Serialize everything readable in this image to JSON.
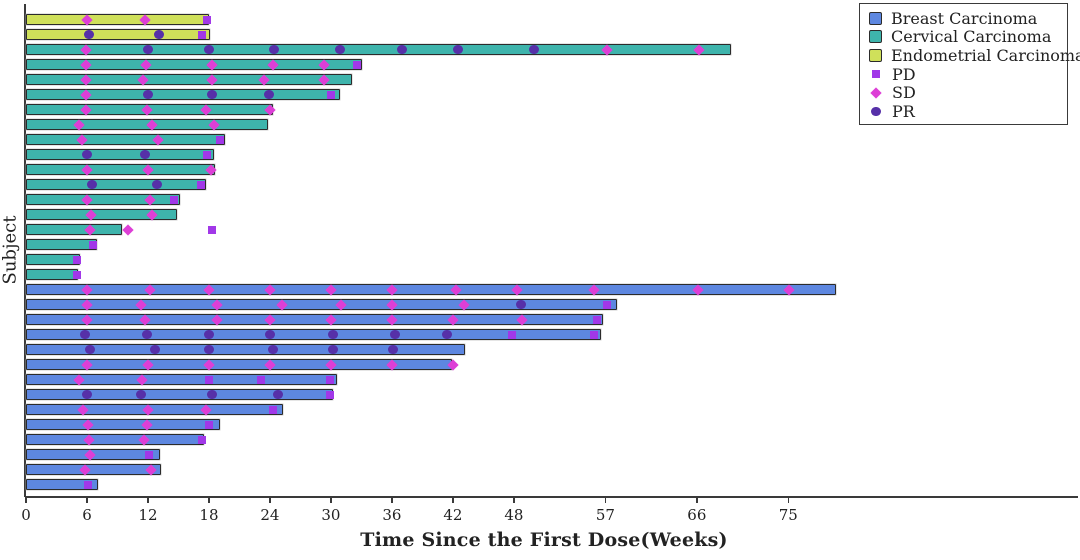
{
  "chart_data": {
    "type": "bar",
    "variant": "swimmer-plot",
    "title": "",
    "xlabel": "Time Since the First Dose(Weeks)",
    "ylabel": "Subject",
    "x_unit": "weeks",
    "xticks": [
      0,
      6,
      12,
      18,
      24,
      30,
      36,
      42,
      48,
      57,
      66,
      75
    ],
    "xlim": [
      0,
      103.5
    ],
    "grid": false,
    "legend_position": "top-right",
    "background": "#ffffff",
    "axis_color": "#3a3a3a",
    "bar_border_color": "#2b2b2b",
    "groups": [
      {
        "label": "Breast Carcinoma",
        "color": "#5d87e0"
      },
      {
        "label": "Cervical Carcinoma",
        "color": "#3eb4ac"
      },
      {
        "label": "Endometrial Carcinoma",
        "color": "#cfe05a"
      }
    ],
    "marker_types": [
      {
        "label": "PD",
        "shape": "square",
        "color": "#a138e8"
      },
      {
        "label": "SD",
        "shape": "diamond",
        "color": "#dd3fd6"
      },
      {
        "label": "PR",
        "shape": "circle",
        "color": "#5630a8"
      }
    ],
    "bars": [
      {
        "group": "Endometrial Carcinoma",
        "length_weeks": 18.0,
        "events": [
          {
            "t": 6.0,
            "m": "SD"
          },
          {
            "t": 11.7,
            "m": "SD"
          },
          {
            "t": 17.8,
            "m": "PD"
          }
        ]
      },
      {
        "group": "Endometrial Carcinoma",
        "length_weeks": 18.1,
        "events": [
          {
            "t": 6.2,
            "m": "PR"
          },
          {
            "t": 13.1,
            "m": "PR"
          },
          {
            "t": 17.3,
            "m": "PD"
          }
        ]
      },
      {
        "group": "Cervical Carcinoma",
        "length_weeks": 69.3,
        "events": [
          {
            "t": 5.9,
            "m": "SD"
          },
          {
            "t": 12.0,
            "m": "PR"
          },
          {
            "t": 18.0,
            "m": "PR"
          },
          {
            "t": 24.4,
            "m": "PR"
          },
          {
            "t": 30.9,
            "m": "PR"
          },
          {
            "t": 37.0,
            "m": "PR"
          },
          {
            "t": 42.5,
            "m": "PR"
          },
          {
            "t": 50.0,
            "m": "PR"
          },
          {
            "t": 57.2,
            "m": "SD"
          },
          {
            "t": 66.2,
            "m": "SD"
          }
        ]
      },
      {
        "group": "Cervical Carcinoma",
        "length_weeks": 33.0,
        "events": [
          {
            "t": 5.9,
            "m": "SD"
          },
          {
            "t": 11.8,
            "m": "SD"
          },
          {
            "t": 18.3,
            "m": "SD"
          },
          {
            "t": 24.3,
            "m": "SD"
          },
          {
            "t": 29.3,
            "m": "SD"
          },
          {
            "t": 32.6,
            "m": "PD"
          }
        ]
      },
      {
        "group": "Cervical Carcinoma",
        "length_weeks": 32.0,
        "events": [
          {
            "t": 5.9,
            "m": "SD"
          },
          {
            "t": 11.5,
            "m": "SD"
          },
          {
            "t": 18.3,
            "m": "SD"
          },
          {
            "t": 23.4,
            "m": "SD"
          },
          {
            "t": 29.3,
            "m": "SD"
          }
        ]
      },
      {
        "group": "Cervical Carcinoma",
        "length_weeks": 30.8,
        "events": [
          {
            "t": 5.9,
            "m": "SD"
          },
          {
            "t": 12.0,
            "m": "PR"
          },
          {
            "t": 18.3,
            "m": "PR"
          },
          {
            "t": 23.9,
            "m": "PR"
          },
          {
            "t": 30.0,
            "m": "PD"
          }
        ]
      },
      {
        "group": "Cervical Carcinoma",
        "length_weeks": 24.3,
        "events": [
          {
            "t": 5.9,
            "m": "SD"
          },
          {
            "t": 11.9,
            "m": "SD"
          },
          {
            "t": 17.7,
            "m": "SD"
          },
          {
            "t": 24.0,
            "m": "SD"
          }
        ]
      },
      {
        "group": "Cervical Carcinoma",
        "length_weeks": 23.8,
        "events": [
          {
            "t": 5.2,
            "m": "SD"
          },
          {
            "t": 12.4,
            "m": "SD"
          },
          {
            "t": 18.5,
            "m": "SD"
          }
        ]
      },
      {
        "group": "Cervical Carcinoma",
        "length_weeks": 19.5,
        "events": [
          {
            "t": 5.5,
            "m": "SD"
          },
          {
            "t": 13.0,
            "m": "SD"
          },
          {
            "t": 19.1,
            "m": "PD"
          }
        ]
      },
      {
        "group": "Cervical Carcinoma",
        "length_weeks": 18.4,
        "events": [
          {
            "t": 6.0,
            "m": "PR"
          },
          {
            "t": 11.7,
            "m": "PR"
          },
          {
            "t": 17.8,
            "m": "PD"
          }
        ]
      },
      {
        "group": "Cervical Carcinoma",
        "length_weeks": 18.5,
        "events": [
          {
            "t": 6.0,
            "m": "SD"
          },
          {
            "t": 12.0,
            "m": "SD"
          },
          {
            "t": 18.2,
            "m": "SD"
          }
        ]
      },
      {
        "group": "Cervical Carcinoma",
        "length_weeks": 17.7,
        "events": [
          {
            "t": 6.5,
            "m": "PR"
          },
          {
            "t": 12.9,
            "m": "PR"
          },
          {
            "t": 17.2,
            "m": "PD"
          }
        ]
      },
      {
        "group": "Cervical Carcinoma",
        "length_weeks": 15.1,
        "events": [
          {
            "t": 6.0,
            "m": "SD"
          },
          {
            "t": 12.2,
            "m": "SD"
          },
          {
            "t": 14.6,
            "m": "PD"
          }
        ]
      },
      {
        "group": "Cervical Carcinoma",
        "length_weeks": 14.8,
        "events": [
          {
            "t": 6.4,
            "m": "SD"
          },
          {
            "t": 12.4,
            "m": "SD"
          }
        ]
      },
      {
        "group": "Cervical Carcinoma",
        "length_weeks": 9.4,
        "events": [
          {
            "t": 6.3,
            "m": "SD"
          },
          {
            "t": 10.0,
            "m": "SD"
          },
          {
            "t": 18.3,
            "m": "PD"
          }
        ]
      },
      {
        "group": "Cervical Carcinoma",
        "length_weeks": 6.9,
        "events": [
          {
            "t": 6.6,
            "m": "PD"
          }
        ]
      },
      {
        "group": "Cervical Carcinoma",
        "length_weeks": 5.3,
        "events": [
          {
            "t": 5.0,
            "m": "PD"
          }
        ]
      },
      {
        "group": "Cervical Carcinoma",
        "length_weeks": 5.1,
        "events": [
          {
            "t": 5.0,
            "m": "PD"
          }
        ]
      },
      {
        "group": "Breast Carcinoma",
        "length_weeks": 79.6,
        "events": [
          {
            "t": 6.0,
            "m": "SD"
          },
          {
            "t": 12.2,
            "m": "SD"
          },
          {
            "t": 18.0,
            "m": "SD"
          },
          {
            "t": 24.0,
            "m": "SD"
          },
          {
            "t": 30.0,
            "m": "SD"
          },
          {
            "t": 36.0,
            "m": "SD"
          },
          {
            "t": 42.3,
            "m": "SD"
          },
          {
            "t": 48.3,
            "m": "SD"
          },
          {
            "t": 55.9,
            "m": "SD"
          },
          {
            "t": 66.1,
            "m": "SD"
          },
          {
            "t": 75.1,
            "m": "SD"
          }
        ]
      },
      {
        "group": "Breast Carcinoma",
        "length_weeks": 58.1,
        "events": [
          {
            "t": 6.0,
            "m": "SD"
          },
          {
            "t": 11.3,
            "m": "SD"
          },
          {
            "t": 18.8,
            "m": "SD"
          },
          {
            "t": 25.2,
            "m": "SD"
          },
          {
            "t": 31.0,
            "m": "SD"
          },
          {
            "t": 36.0,
            "m": "SD"
          },
          {
            "t": 43.1,
            "m": "SD"
          },
          {
            "t": 48.7,
            "m": "PR"
          },
          {
            "t": 57.2,
            "m": "PD"
          }
        ]
      },
      {
        "group": "Breast Carcinoma",
        "length_weeks": 56.7,
        "events": [
          {
            "t": 6.0,
            "m": "SD"
          },
          {
            "t": 11.7,
            "m": "SD"
          },
          {
            "t": 18.8,
            "m": "SD"
          },
          {
            "t": 24.0,
            "m": "SD"
          },
          {
            "t": 30.0,
            "m": "SD"
          },
          {
            "t": 36.0,
            "m": "SD"
          },
          {
            "t": 42.0,
            "m": "SD"
          },
          {
            "t": 48.8,
            "m": "SD"
          },
          {
            "t": 56.2,
            "m": "PD"
          }
        ]
      },
      {
        "group": "Breast Carcinoma",
        "length_weeks": 56.5,
        "events": [
          {
            "t": 5.8,
            "m": "PR"
          },
          {
            "t": 11.9,
            "m": "PR"
          },
          {
            "t": 18.0,
            "m": "PR"
          },
          {
            "t": 24.0,
            "m": "PR"
          },
          {
            "t": 30.2,
            "m": "PR"
          },
          {
            "t": 36.3,
            "m": "PR"
          },
          {
            "t": 41.4,
            "m": "PR"
          },
          {
            "t": 47.8,
            "m": "PD"
          },
          {
            "t": 55.9,
            "m": "PD"
          }
        ]
      },
      {
        "group": "Breast Carcinoma",
        "length_weeks": 43.1,
        "events": [
          {
            "t": 6.3,
            "m": "PR"
          },
          {
            "t": 12.7,
            "m": "PR"
          },
          {
            "t": 18.0,
            "m": "PR"
          },
          {
            "t": 24.3,
            "m": "PR"
          },
          {
            "t": 30.2,
            "m": "PR"
          },
          {
            "t": 36.1,
            "m": "PR"
          }
        ]
      },
      {
        "group": "Breast Carcinoma",
        "length_weeks": 41.9,
        "events": [
          {
            "t": 6.0,
            "m": "SD"
          },
          {
            "t": 12.0,
            "m": "SD"
          },
          {
            "t": 18.0,
            "m": "SD"
          },
          {
            "t": 24.0,
            "m": "SD"
          },
          {
            "t": 30.0,
            "m": "SD"
          },
          {
            "t": 36.0,
            "m": "SD"
          },
          {
            "t": 42.0,
            "m": "SD"
          }
        ]
      },
      {
        "group": "Breast Carcinoma",
        "length_weeks": 30.5,
        "events": [
          {
            "t": 5.2,
            "m": "SD"
          },
          {
            "t": 11.4,
            "m": "SD"
          },
          {
            "t": 18.0,
            "m": "PD"
          },
          {
            "t": 23.1,
            "m": "PD"
          },
          {
            "t": 29.9,
            "m": "PD"
          }
        ]
      },
      {
        "group": "Breast Carcinoma",
        "length_weeks": 30.2,
        "events": [
          {
            "t": 6.0,
            "m": "PR"
          },
          {
            "t": 11.3,
            "m": "PR"
          },
          {
            "t": 18.3,
            "m": "PR"
          },
          {
            "t": 24.8,
            "m": "PR"
          },
          {
            "t": 29.9,
            "m": "PD"
          }
        ]
      },
      {
        "group": "Breast Carcinoma",
        "length_weeks": 25.2,
        "events": [
          {
            "t": 5.6,
            "m": "SD"
          },
          {
            "t": 12.0,
            "m": "SD"
          },
          {
            "t": 17.7,
            "m": "SD"
          },
          {
            "t": 24.3,
            "m": "PD"
          }
        ]
      },
      {
        "group": "Breast Carcinoma",
        "length_weeks": 19.0,
        "events": [
          {
            "t": 6.1,
            "m": "SD"
          },
          {
            "t": 11.9,
            "m": "SD"
          },
          {
            "t": 18.0,
            "m": "PD"
          }
        ]
      },
      {
        "group": "Breast Carcinoma",
        "length_weeks": 17.5,
        "events": [
          {
            "t": 6.2,
            "m": "SD"
          },
          {
            "t": 11.6,
            "m": "SD"
          },
          {
            "t": 17.3,
            "m": "PD"
          }
        ]
      },
      {
        "group": "Breast Carcinoma",
        "length_weeks": 13.1,
        "events": [
          {
            "t": 6.3,
            "m": "SD"
          },
          {
            "t": 12.1,
            "m": "PD"
          }
        ]
      },
      {
        "group": "Breast Carcinoma",
        "length_weeks": 13.2,
        "events": [
          {
            "t": 5.8,
            "m": "SD"
          },
          {
            "t": 12.3,
            "m": "SD"
          }
        ]
      },
      {
        "group": "Breast Carcinoma",
        "length_weeks": 7.0,
        "events": [
          {
            "t": 6.1,
            "m": "PD"
          }
        ]
      }
    ]
  }
}
